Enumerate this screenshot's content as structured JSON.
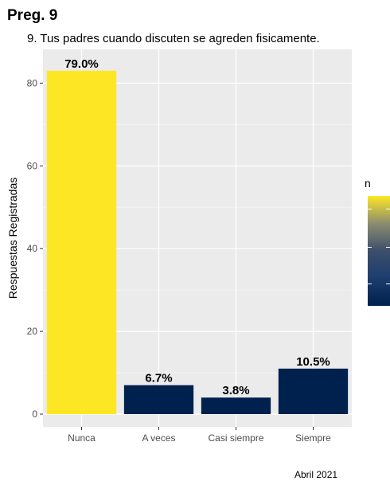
{
  "chart_data": {
    "type": "bar",
    "title": "Preg. 9",
    "subtitle": "9. Tus padres cuando discuten se agreden fisicamente.",
    "xlabel": "",
    "ylabel": "Respuestas Registradas",
    "caption": "Abril 2021",
    "categories": [
      "Nunca",
      "A veces",
      "Casi siempre",
      "Siempre"
    ],
    "values": [
      83,
      7,
      4,
      11
    ],
    "data_labels": [
      "79.0%",
      "6.7%",
      "3.8%",
      "10.5%"
    ],
    "bar_colors": [
      "#FDE725",
      "#00204D",
      "#00204D",
      "#00204D"
    ],
    "ylim": [
      0,
      87
    ],
    "yticks": [
      0,
      20,
      40,
      60,
      80
    ],
    "grid": true,
    "panel_background": "#EBEBEB",
    "legend": {
      "title": "n",
      "placement": "right",
      "colors": [
        "#FDE725",
        "#00204D"
      ]
    }
  }
}
